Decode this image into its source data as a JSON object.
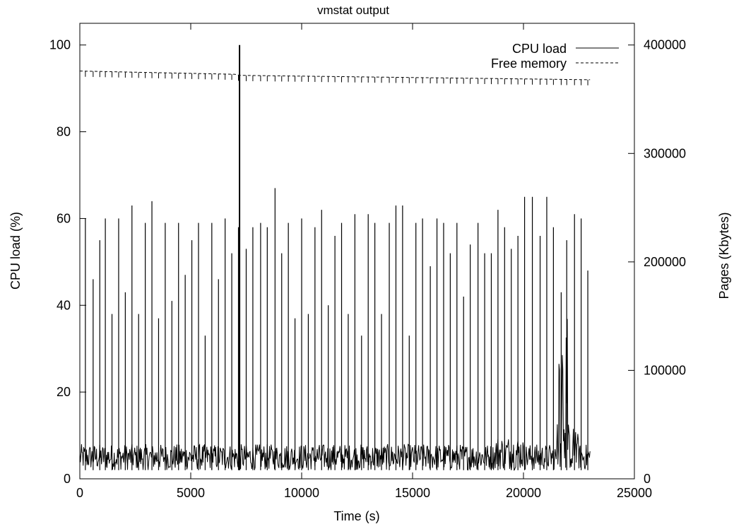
{
  "chart_data": {
    "type": "line",
    "title": "vmstat output",
    "xlabel": "Time (s)",
    "ylabel": "CPU load (%)",
    "y2label": "Pages (Kbytes)",
    "xlim": [
      0,
      25000
    ],
    "ylim": [
      0,
      105
    ],
    "y2lim": [
      0,
      420000
    ],
    "x_ticks": [
      "0",
      "5000",
      "10000",
      "15000",
      "20000",
      "25000"
    ],
    "y_ticks": [
      "0",
      "20",
      "40",
      "60",
      "80",
      "100"
    ],
    "y2_ticks": [
      "0",
      "100000",
      "200000",
      "300000",
      "400000"
    ],
    "grid": false,
    "legend_position": "top-right",
    "series": [
      {
        "name": "CPU load",
        "axis": "y",
        "style": "solid",
        "baseline_range": [
          2,
          8
        ],
        "spikes": [
          {
            "x": 250,
            "y": 60
          },
          {
            "x": 600,
            "y": 46
          },
          {
            "x": 900,
            "y": 55
          },
          {
            "x": 1150,
            "y": 60
          },
          {
            "x": 1450,
            "y": 38
          },
          {
            "x": 1750,
            "y": 60
          },
          {
            "x": 2050,
            "y": 43
          },
          {
            "x": 2350,
            "y": 63
          },
          {
            "x": 2650,
            "y": 38
          },
          {
            "x": 2950,
            "y": 59
          },
          {
            "x": 3250,
            "y": 64
          },
          {
            "x": 3550,
            "y": 37
          },
          {
            "x": 3850,
            "y": 59
          },
          {
            "x": 4150,
            "y": 41
          },
          {
            "x": 4450,
            "y": 59
          },
          {
            "x": 4750,
            "y": 47
          },
          {
            "x": 5050,
            "y": 55
          },
          {
            "x": 5350,
            "y": 59
          },
          {
            "x": 5650,
            "y": 33
          },
          {
            "x": 5950,
            "y": 59
          },
          {
            "x": 6250,
            "y": 46
          },
          {
            "x": 6550,
            "y": 60
          },
          {
            "x": 6850,
            "y": 52
          },
          {
            "x": 7150,
            "y": 58
          },
          {
            "x": 7200,
            "y": 100
          },
          {
            "x": 7500,
            "y": 53
          },
          {
            "x": 7800,
            "y": 58
          },
          {
            "x": 8150,
            "y": 59
          },
          {
            "x": 8450,
            "y": 58
          },
          {
            "x": 8800,
            "y": 67
          },
          {
            "x": 9100,
            "y": 52
          },
          {
            "x": 9400,
            "y": 59
          },
          {
            "x": 9700,
            "y": 37
          },
          {
            "x": 10000,
            "y": 60
          },
          {
            "x": 10300,
            "y": 38
          },
          {
            "x": 10600,
            "y": 58
          },
          {
            "x": 10900,
            "y": 62
          },
          {
            "x": 11200,
            "y": 40
          },
          {
            "x": 11500,
            "y": 56
          },
          {
            "x": 11800,
            "y": 59
          },
          {
            "x": 12100,
            "y": 38
          },
          {
            "x": 12400,
            "y": 61
          },
          {
            "x": 12700,
            "y": 33
          },
          {
            "x": 13000,
            "y": 61
          },
          {
            "x": 13300,
            "y": 59
          },
          {
            "x": 13600,
            "y": 38
          },
          {
            "x": 13950,
            "y": 59
          },
          {
            "x": 14250,
            "y": 63
          },
          {
            "x": 14550,
            "y": 63
          },
          {
            "x": 14850,
            "y": 33
          },
          {
            "x": 15150,
            "y": 59
          },
          {
            "x": 15450,
            "y": 60
          },
          {
            "x": 15800,
            "y": 49
          },
          {
            "x": 16100,
            "y": 60
          },
          {
            "x": 16400,
            "y": 59
          },
          {
            "x": 16700,
            "y": 52
          },
          {
            "x": 17000,
            "y": 59
          },
          {
            "x": 17300,
            "y": 42
          },
          {
            "x": 17600,
            "y": 54
          },
          {
            "x": 17950,
            "y": 59
          },
          {
            "x": 18250,
            "y": 52
          },
          {
            "x": 18550,
            "y": 52
          },
          {
            "x": 18850,
            "y": 62
          },
          {
            "x": 19150,
            "y": 58
          },
          {
            "x": 19450,
            "y": 53
          },
          {
            "x": 19750,
            "y": 56
          },
          {
            "x": 20050,
            "y": 65
          },
          {
            "x": 20400,
            "y": 65
          },
          {
            "x": 20750,
            "y": 56
          },
          {
            "x": 21050,
            "y": 65
          },
          {
            "x": 21350,
            "y": 58
          },
          {
            "x": 21700,
            "y": 43
          },
          {
            "x": 21950,
            "y": 55
          },
          {
            "x": 22300,
            "y": 61
          },
          {
            "x": 22600,
            "y": 60
          },
          {
            "x": 22900,
            "y": 48
          }
        ]
      },
      {
        "name": "Free memory",
        "axis": "y2",
        "style": "dashed",
        "x": [
          0,
          7000,
          7200,
          23000
        ],
        "values": [
          376000,
          373000,
          372000,
          368000
        ]
      }
    ]
  }
}
